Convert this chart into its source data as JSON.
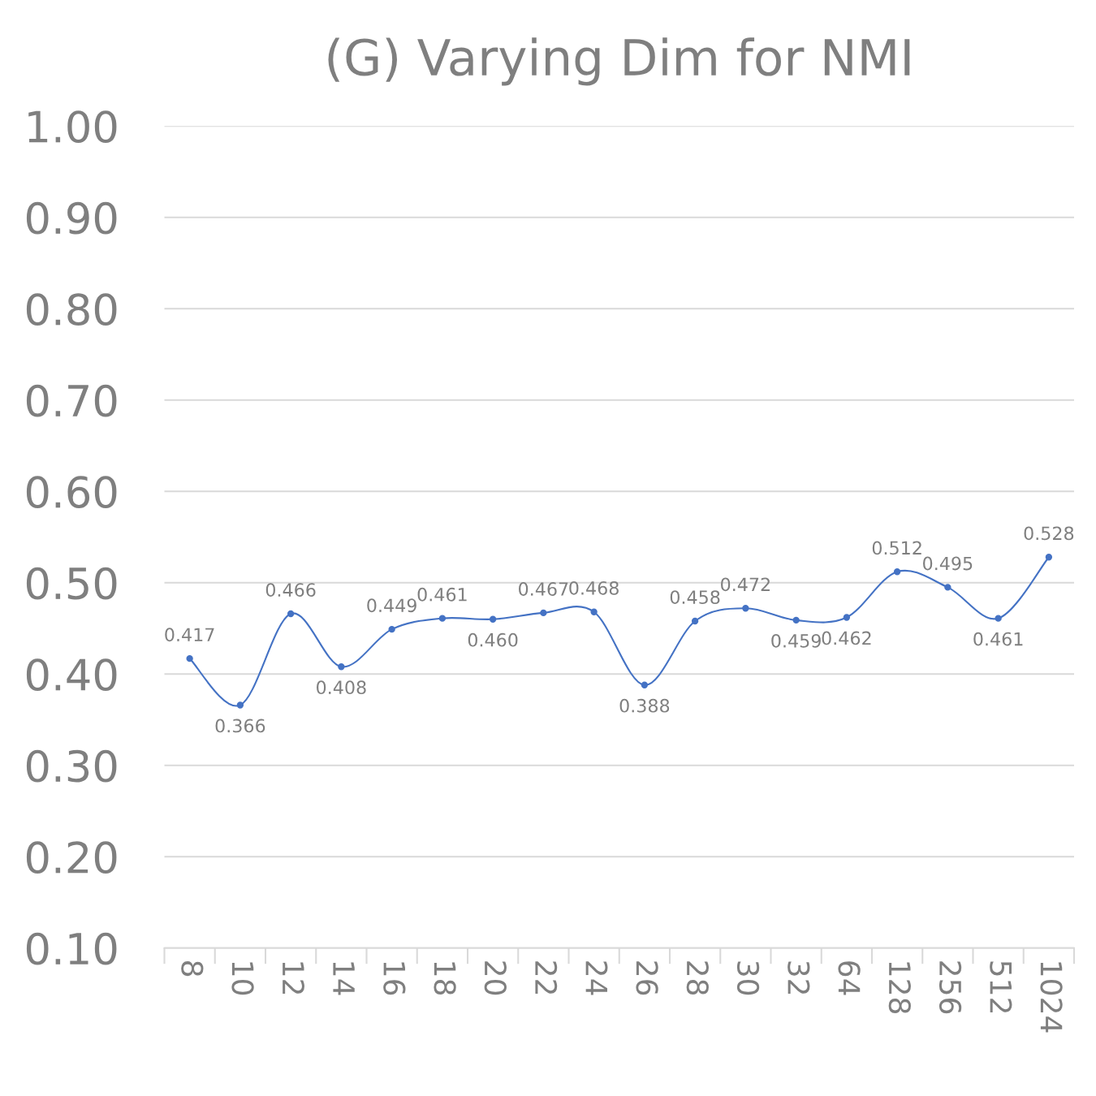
{
  "chart_data": {
    "type": "line",
    "title": "(G) Varying Dim for NMI",
    "categories": [
      "8",
      "10",
      "12",
      "14",
      "16",
      "18",
      "20",
      "22",
      "24",
      "26",
      "28",
      "30",
      "32",
      "64",
      "128",
      "256",
      "512",
      "1024"
    ],
    "series": [
      {
        "color": "#4472c4",
        "values": [
          0.417,
          0.366,
          0.466,
          0.408,
          0.449,
          0.461,
          0.46,
          0.467,
          0.468,
          0.388,
          0.458,
          0.472,
          0.459,
          0.462,
          0.512,
          0.495,
          0.461,
          0.528
        ],
        "value_labels": [
          "0.417",
          "0.366",
          "0.466",
          "0.408",
          "0.449",
          "0.461",
          "0.460",
          "0.467",
          "0.468",
          "0.388",
          "0.458",
          "0.472",
          "0.459",
          "0.462",
          "0.512",
          "0.495",
          "0.461",
          "0.528"
        ]
      }
    ],
    "ylim": [
      0.1,
      1.0
    ],
    "yticks": [
      {
        "value": 0.1,
        "label": "0.10"
      },
      {
        "value": 0.2,
        "label": "0.20"
      },
      {
        "value": 0.3,
        "label": "0.30"
      },
      {
        "value": 0.4,
        "label": "0.40"
      },
      {
        "value": 0.5,
        "label": "0.50"
      },
      {
        "value": 0.6,
        "label": "0.60"
      },
      {
        "value": 0.7,
        "label": "0.70"
      },
      {
        "value": 0.8,
        "label": "0.80"
      },
      {
        "value": 0.9,
        "label": "0.90"
      },
      {
        "value": 1.0,
        "label": "1.00"
      }
    ],
    "grid": "y",
    "marker": "circle",
    "line_style": "solid"
  }
}
